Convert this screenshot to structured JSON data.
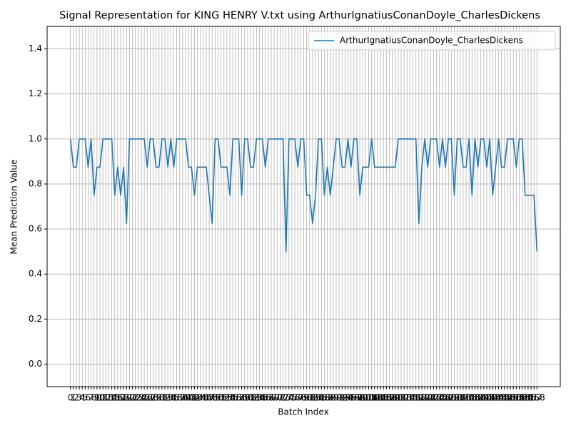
{
  "chart_data": {
    "type": "line",
    "title": "Signal Representation for KING HENRY V.txt using ArthurIgnatiusConanDoyle_CharlesDickens",
    "xlabel": "Batch Index",
    "ylabel": "Mean Prediction Value",
    "x": [
      0,
      1,
      2,
      3,
      4,
      5,
      6,
      7,
      8,
      9,
      10,
      11,
      12,
      13,
      14,
      15,
      16,
      17,
      18,
      19,
      20,
      21,
      22,
      23,
      24,
      25,
      26,
      27,
      28,
      29,
      30,
      31,
      32,
      33,
      34,
      35,
      36,
      37,
      38,
      39,
      40,
      41,
      42,
      43,
      44,
      45,
      46,
      47,
      48,
      49,
      50,
      51,
      52,
      53,
      54,
      55,
      56,
      57,
      58,
      59,
      60,
      61,
      62,
      63,
      64,
      65,
      66,
      67,
      68,
      69,
      70,
      71,
      72,
      73,
      74,
      75,
      76,
      77,
      78,
      79,
      80,
      81,
      82,
      83,
      84,
      85,
      86,
      87,
      88,
      89,
      90,
      91,
      92,
      93,
      94,
      95,
      96,
      97,
      98,
      99,
      100,
      101,
      102,
      103,
      104,
      105,
      106,
      107,
      108,
      109,
      110,
      111,
      112,
      113,
      114,
      115,
      116,
      117,
      118,
      119,
      120,
      121,
      122,
      123,
      124,
      125,
      126,
      127,
      128,
      129,
      130,
      131,
      132,
      133,
      134,
      135,
      136,
      137,
      138,
      139,
      140,
      141,
      142,
      143,
      144,
      145,
      146,
      147,
      148,
      149,
      150,
      151,
      152,
      153,
      154,
      155,
      156,
      157,
      158
    ],
    "series": [
      {
        "name": "ArthurIgnatiusConanDoyle_CharlesDickens",
        "color": "#1f77b4",
        "values": [
          1,
          0.875,
          0.875,
          1,
          1,
          1,
          0.875,
          1,
          0.75,
          0.875,
          0.875,
          1,
          1,
          1,
          1,
          0.75,
          0.875,
          0.75,
          0.875,
          0.625,
          1,
          1,
          1,
          1,
          1,
          1,
          0.875,
          1,
          1,
          0.875,
          0.875,
          1,
          1,
          0.875,
          1,
          0.875,
          1,
          1,
          1,
          1,
          0.875,
          0.875,
          0.75,
          0.875,
          0.875,
          0.875,
          0.875,
          0.75,
          0.625,
          1,
          1,
          0.875,
          0.875,
          0.875,
          0.75,
          1,
          1,
          1,
          0.75,
          1,
          1,
          0.875,
          0.875,
          1,
          1,
          1,
          0.875,
          1,
          1,
          1,
          1,
          1,
          1,
          0.5,
          1,
          1,
          1,
          0.875,
          1,
          1,
          0.75,
          0.75,
          0.625,
          0.75,
          1,
          1,
          0.75,
          0.875,
          0.75,
          0.875,
          1,
          1,
          0.875,
          0.875,
          1,
          0.875,
          1,
          1,
          0.75,
          0.875,
          0.875,
          0.875,
          1,
          0.875,
          0.875,
          0.875,
          0.875,
          0.875,
          0.875,
          0.875,
          0.875,
          1,
          1,
          1,
          1,
          1,
          1,
          1,
          0.625,
          0.875,
          1,
          0.875,
          1,
          1,
          1,
          0.875,
          1,
          0.875,
          1,
          1,
          0.75,
          1,
          1,
          0.875,
          0.875,
          1,
          0.75,
          1,
          0.875,
          1,
          1,
          0.875,
          1,
          0.75,
          0.875,
          1,
          0.875,
          0.875,
          1,
          1,
          1,
          0.875,
          1,
          1,
          0.75,
          0.75,
          0.75,
          0.75,
          0.5
        ]
      }
    ],
    "xlim": [
      -7.9,
      165.9
    ],
    "xticks": [
      0,
      1,
      2,
      3,
      4,
      5,
      6,
      7,
      8,
      9,
      10,
      11,
      12,
      13,
      14,
      15,
      16,
      17,
      18,
      19,
      20,
      21,
      22,
      23,
      24,
      25,
      26,
      27,
      28,
      29,
      30,
      31,
      32,
      33,
      34,
      35,
      36,
      37,
      38,
      39,
      40,
      41,
      42,
      43,
      44,
      45,
      46,
      47,
      48,
      49,
      50,
      51,
      52,
      53,
      54,
      55,
      56,
      57,
      58,
      59,
      60,
      61,
      62,
      63,
      64,
      65,
      66,
      67,
      68,
      69,
      70,
      71,
      72,
      73,
      74,
      75,
      76,
      77,
      78,
      79,
      80,
      81,
      82,
      83,
      84,
      85,
      86,
      87,
      88,
      89,
      90,
      91,
      92,
      93,
      94,
      95,
      96,
      97,
      98,
      99,
      100,
      101,
      102,
      103,
      104,
      105,
      106,
      107,
      108,
      109,
      110,
      111,
      112,
      113,
      114,
      115,
      116,
      117,
      118,
      119,
      120,
      121,
      122,
      123,
      124,
      125,
      126,
      127,
      128,
      129,
      130,
      131,
      132,
      133,
      134,
      135,
      136,
      137,
      138,
      139,
      140,
      141,
      142,
      143,
      144,
      145,
      146,
      147,
      148,
      149,
      150,
      151,
      152,
      153,
      154,
      155,
      156,
      157,
      158
    ],
    "ylim": [
      -0.1,
      1.5
    ],
    "yticks": [
      {
        "value": 0,
        "label": "0.0"
      },
      0.2,
      0.4,
      0.6,
      0.8,
      {
        "value": 1,
        "label": "1.0"
      },
      1.2,
      1.4
    ],
    "grid": true,
    "legend": "upper right"
  }
}
